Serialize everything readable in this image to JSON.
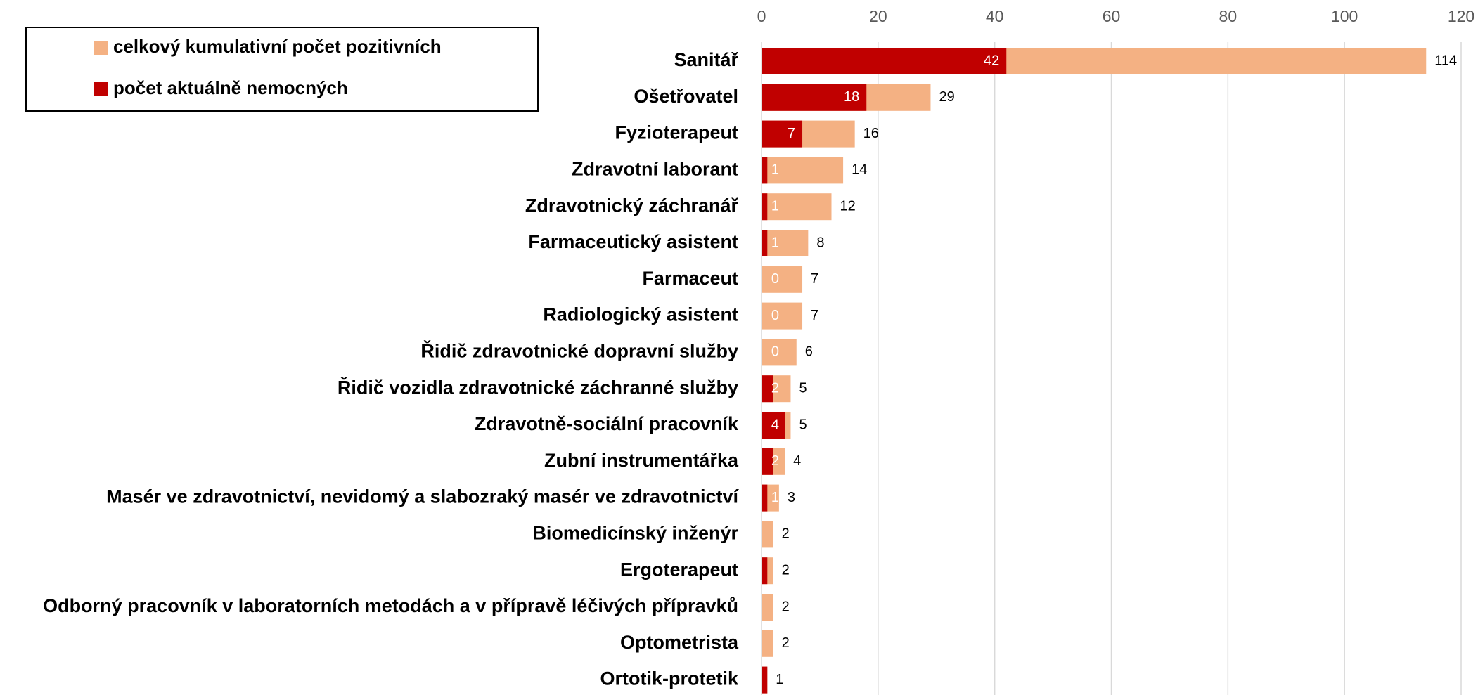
{
  "chart_data": {
    "type": "bar",
    "orientation": "horizontal",
    "categories": [
      "Sanitář",
      "Ošetřovatel",
      "Fyzioterapeut",
      "Zdravotní laborant",
      "Zdravotnický záchranář",
      "Farmaceutický asistent",
      "Farmaceut",
      "Radiologický asistent",
      "Řidič zdravotnické dopravní služby",
      "Řidič vozidla zdravotnické záchranné služby",
      "Zdravotně-sociální pracovník",
      "Zubní instrumentářka",
      "Masér ve zdravotnictví, nevidomý a slabozraký masér ve zdravotnictví",
      "Biomedicínský inženýr",
      "Ergoterapeut",
      "Odborný pracovník v laboratorních metodách a v přípravě léčivých přípravků",
      "Optometrista",
      "Ortotik-protetik"
    ],
    "series": [
      {
        "name": "celkový kumulativní počet pozitivních",
        "color": "#f4b183",
        "values": [
          114,
          29,
          16,
          14,
          12,
          8,
          7,
          7,
          6,
          5,
          5,
          4,
          3,
          2,
          2,
          2,
          2,
          1
        ]
      },
      {
        "name": "počet aktuálně nemocných",
        "color": "#c00000",
        "values": [
          42,
          18,
          7,
          1,
          1,
          1,
          0,
          0,
          0,
          2,
          4,
          2,
          1,
          0,
          1,
          0,
          0,
          1
        ],
        "value_labels": [
          "42",
          "18",
          "7",
          "1",
          "1",
          "1",
          "0",
          "0",
          "0",
          "2",
          "4",
          "2",
          "1",
          null,
          null,
          null,
          null,
          null
        ]
      }
    ],
    "xlim": [
      0,
      120
    ],
    "xticks": [
      0,
      20,
      40,
      60,
      80,
      100,
      120
    ],
    "grid": true,
    "overlap": true
  }
}
